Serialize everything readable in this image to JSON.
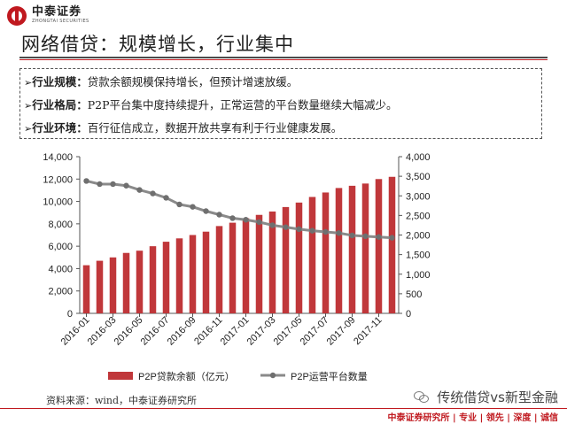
{
  "header": {
    "logo_text": "中泰证券",
    "logo_subtext": "ZHONGTAI SECURITIES",
    "title": "网络借贷：规模增长，行业集中"
  },
  "bullets": [
    {
      "mark": "➢",
      "key": "行业规模：",
      "text": "贷款余额规模保持增长，但预计增速放缓。"
    },
    {
      "mark": "➢",
      "key": "行业格局：",
      "text": "P2P平台集中度持续提升，正常运营的平台数量继续大幅减少。"
    },
    {
      "mark": "➢",
      "key": "行业环境：",
      "text": "百行征信成立，数据开放共享有利于行业健康发展。"
    }
  ],
  "chart_data": {
    "type": "bar+line",
    "x": [
      "2016-01",
      "2016-02",
      "2016-03",
      "2016-04",
      "2016-05",
      "2016-06",
      "2016-07",
      "2016-08",
      "2016-09",
      "2016-10",
      "2016-11",
      "2016-12",
      "2017-01",
      "2017-02",
      "2017-03",
      "2017-04",
      "2017-05",
      "2017-06",
      "2017-07",
      "2017-08",
      "2017-09",
      "2017-10",
      "2017-11",
      "2017-12"
    ],
    "tick_labels": [
      "2016-01",
      "2016-03",
      "2016-05",
      "2016-07",
      "2016-09",
      "2016-11",
      "2017-01",
      "2017-03",
      "2017-05",
      "2017-07",
      "2017-09",
      "2017-11"
    ],
    "series": [
      {
        "name": "P2P贷款余额（亿元）",
        "type": "bar",
        "axis": "left",
        "color": "#c0373a",
        "values": [
          4300,
          4700,
          5000,
          5400,
          5600,
          6000,
          6400,
          6700,
          7000,
          7300,
          7800,
          8100,
          8500,
          8800,
          9100,
          9500,
          9900,
          10400,
          10800,
          11200,
          11400,
          11600,
          12000,
          12200
        ]
      },
      {
        "name": "P2P运营平台数量",
        "type": "line",
        "axis": "right",
        "color": "#8a8a8a",
        "values": [
          3380,
          3300,
          3300,
          3260,
          3150,
          3060,
          2950,
          2780,
          2720,
          2610,
          2520,
          2430,
          2390,
          2330,
          2250,
          2200,
          2150,
          2110,
          2080,
          2050,
          1990,
          1970,
          1950,
          1930
        ]
      }
    ],
    "y_left": {
      "min": 0,
      "max": 14000,
      "step": 2000,
      "tick_labels": [
        "0",
        "2,000",
        "4,000",
        "6,000",
        "8,000",
        "10,000",
        "12,000",
        "14,000"
      ]
    },
    "y_right": {
      "min": 0,
      "max": 4000,
      "step": 500,
      "tick_labels": [
        "0",
        "500",
        "1,000",
        "1,500",
        "2,000",
        "2,500",
        "3,000",
        "3,500",
        "4,000"
      ]
    },
    "legend_position": "bottom"
  },
  "footnote": {
    "source": "资料来源：wind，中泰证券研究所",
    "watermark": "传统借贷vs新型金融"
  },
  "footer": {
    "text": "中泰证券研究所 | 专业 | 领先 | 深度 | 诚信"
  }
}
